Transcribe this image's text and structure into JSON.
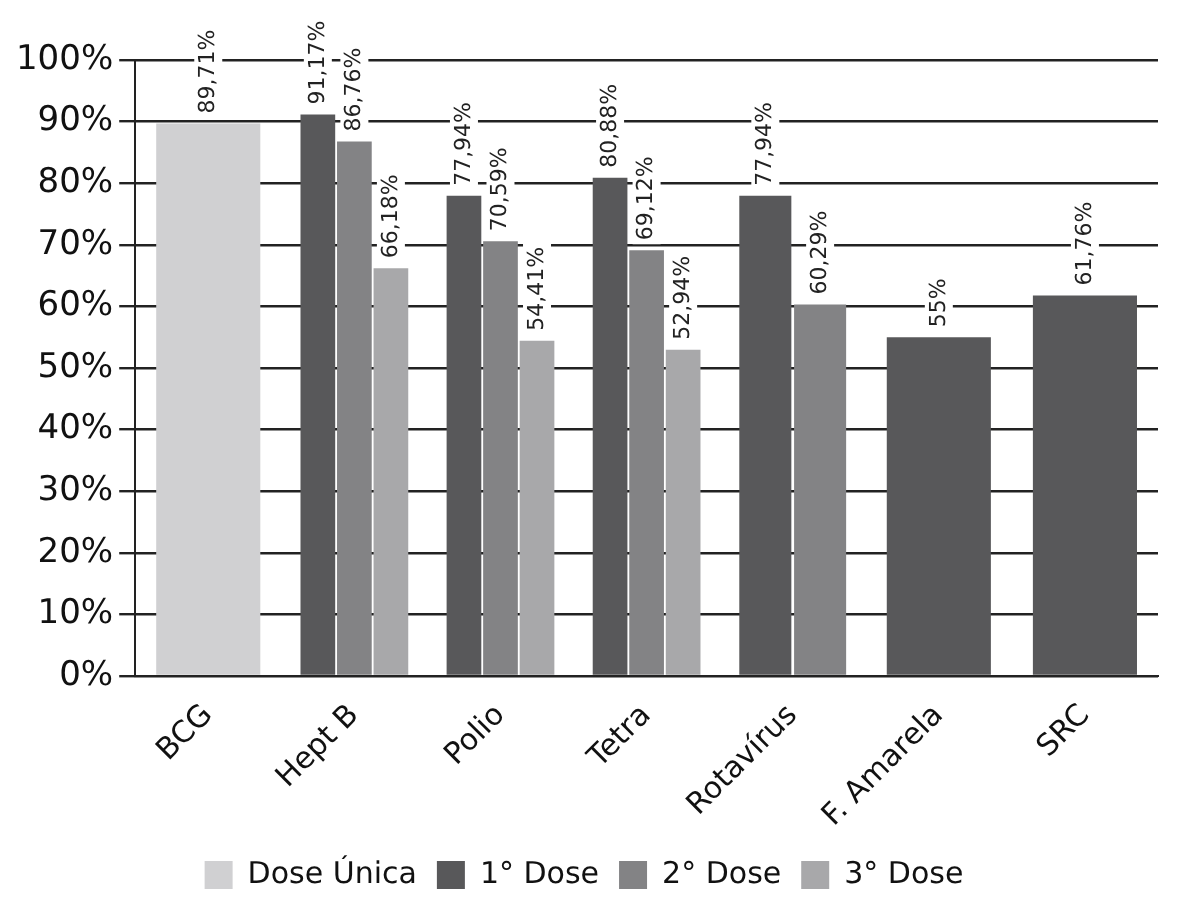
{
  "chart_data": {
    "type": "bar",
    "categories": [
      "BCG",
      "Hept B",
      "Polio",
      "Tetra",
      "Rotavírus",
      "F. Amarela",
      "SRC"
    ],
    "series": [
      {
        "name": "Dose Única",
        "color": "#d0d0d2",
        "values": [
          89.71,
          null,
          null,
          null,
          null,
          null,
          null
        ],
        "value_labels": [
          "89,71%",
          null,
          null,
          null,
          null,
          null,
          null
        ]
      },
      {
        "name": "1° Dose",
        "color": "#58585a",
        "values": [
          null,
          91.17,
          77.94,
          80.88,
          77.94,
          55,
          61.76
        ],
        "value_labels": [
          null,
          "91,17%",
          "77,94%",
          "80,88%",
          "77,94%",
          "55%",
          "61,76%"
        ]
      },
      {
        "name": "2° Dose",
        "color": "#838385",
        "values": [
          null,
          86.76,
          70.59,
          69.12,
          60.29,
          null,
          null
        ],
        "value_labels": [
          null,
          "86,76%",
          "70,59%",
          "69,12%",
          "60,29%",
          null,
          null
        ]
      },
      {
        "name": "3° Dose",
        "color": "#a8a8aa",
        "values": [
          null,
          66.18,
          54.41,
          52.94,
          null,
          null,
          null
        ],
        "value_labels": [
          null,
          "66,18%",
          "54,41%",
          "52,94%",
          null,
          null,
          null
        ]
      }
    ],
    "ylim": [
      0,
      100
    ],
    "yticks": [
      {
        "value": 0,
        "label": "0%"
      },
      {
        "value": 10,
        "label": "10%"
      },
      {
        "value": 20,
        "label": "20%"
      },
      {
        "value": 30,
        "label": "30%"
      },
      {
        "value": 40,
        "label": "40%"
      },
      {
        "value": 50,
        "label": "50%"
      },
      {
        "value": 60,
        "label": "60%"
      },
      {
        "value": 70,
        "label": "70%"
      },
      {
        "value": 80,
        "label": "80%"
      },
      {
        "value": 90,
        "label": "90%"
      },
      {
        "value": 100,
        "label": "100%"
      }
    ],
    "grid": "y",
    "legend": "bottom"
  }
}
